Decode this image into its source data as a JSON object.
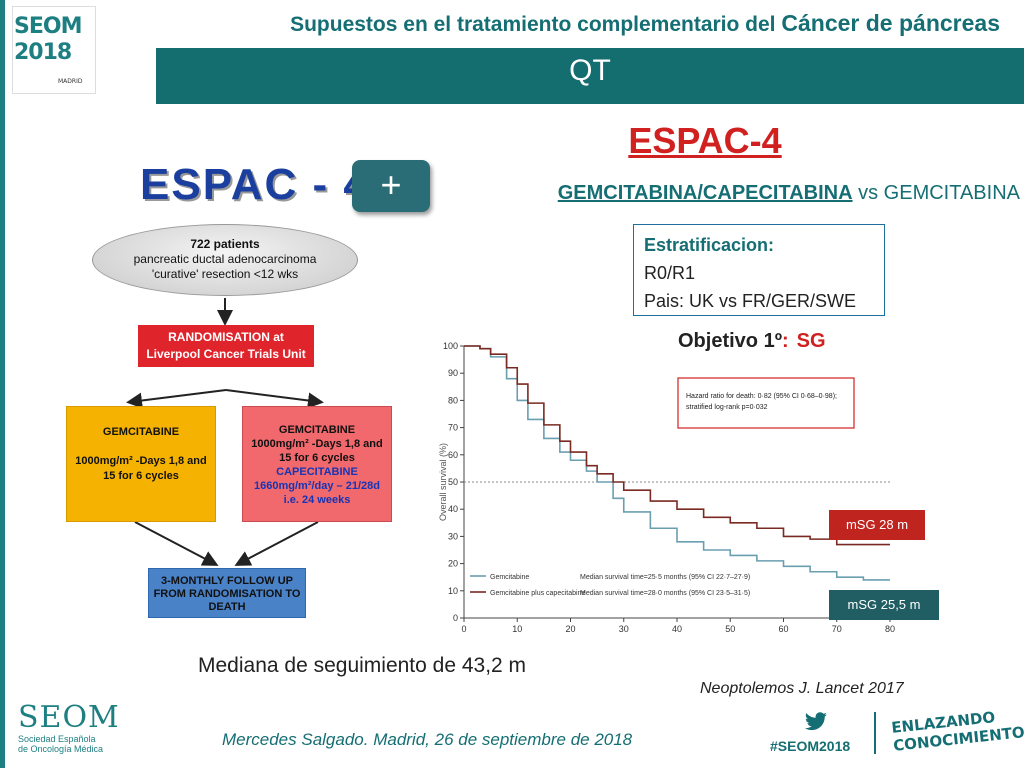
{
  "header": {
    "title_part1": "Supuestos en el tratamiento complementario del",
    "title_part2": "Cáncer de páncreas",
    "section": "QT"
  },
  "logo": {
    "seom": "SEOM",
    "year": "2018",
    "city": "MADRID"
  },
  "trial": {
    "title": "ESPAC-4",
    "drugs_main": "GEMCITABINA/CAPECITABINA",
    "drugs_vs": "vs GEMCITABINA",
    "strat_header": "Estratificacion:",
    "strat_line1": "R0/R1",
    "strat_line2": "Pais: UK vs FR/GER/SWE",
    "objective_label": "Objetivo 1º",
    "objective_colon": ":",
    "objective_value": "SG"
  },
  "flow": {
    "logo": "ESPAC - 4",
    "plus": "+",
    "oval_l1": "722 patients",
    "oval_l2": "pancreatic ductal adenocarcinoma",
    "oval_l3": "'curative' resection <12 wks",
    "random_l1": "RANDOMISATION at",
    "random_l2": "Liverpool Cancer Trials Unit",
    "gem_l1": "GEMCITABINE",
    "gem_l2": "1000mg/m² -Days 1,8 and",
    "gem_l3": "15 for 6 cycles",
    "combo_l1": "GEMCITABINE",
    "combo_l2": "1000mg/m² -Days 1,8 and",
    "combo_l3": "15 for 6 cycles",
    "combo_l4": "CAPECITABINE",
    "combo_l5": "1660mg/m²/day – 21/28d",
    "combo_l6": "i.e. 24 weeks",
    "follow_l1": "3-MONTHLY FOLLOW UP",
    "follow_l2": "FROM RANDOMISATION TO",
    "follow_l3": "DEATH"
  },
  "chart_data": {
    "type": "line",
    "ylabel": "Overall survival (%)",
    "xlim": [
      0,
      80
    ],
    "ylim": [
      0,
      100
    ],
    "x_ticks": [
      0,
      10,
      20,
      30,
      40,
      50,
      60,
      70,
      80
    ],
    "y_ticks": [
      0,
      10,
      20,
      30,
      40,
      50,
      60,
      70,
      80,
      90,
      100
    ],
    "reference_line_y": 50,
    "hr_text_l1": "Hazard ratio for death: 0·82 (95% CI 0·68–0·98);",
    "hr_text_l2": "stratified log-rank p=0·032",
    "series": [
      {
        "name": "Gemcitabine",
        "legend_detail": "Median survival time=25·5 months (95% CI 22·7–27·9)",
        "color": "#6a9fb0",
        "x": [
          0,
          3,
          5,
          8,
          10,
          12,
          15,
          18,
          20,
          23,
          25,
          28,
          30,
          35,
          40,
          45,
          50,
          55,
          60,
          65,
          70,
          75,
          80
        ],
        "y": [
          100,
          99,
          96,
          88,
          80,
          73,
          66,
          61,
          58,
          54,
          50,
          44,
          39,
          33,
          28,
          25,
          23,
          21,
          19,
          17,
          15,
          14,
          14
        ]
      },
      {
        "name": "Gemcitabine plus capecitabine",
        "legend_detail": "Median survival time=28·0 months (95% CI 23·5–31·5)",
        "color": "#7a2a22",
        "x": [
          0,
          3,
          5,
          8,
          10,
          12,
          15,
          18,
          20,
          23,
          25,
          28,
          30,
          35,
          40,
          45,
          50,
          55,
          60,
          65,
          70,
          75,
          80
        ],
        "y": [
          100,
          99,
          97,
          92,
          86,
          79,
          71,
          65,
          61,
          56,
          53,
          50,
          47,
          43,
          40,
          37,
          35,
          33,
          30,
          29,
          27,
          27,
          27
        ]
      }
    ]
  },
  "boxes": {
    "msg_red": "mSG 28 m",
    "msg_teal": "mSG 25,5 m"
  },
  "notes": {
    "mediana": "Mediana de seguimiento de 43,2 m",
    "citation": "Neoptolemos J. Lancet 2017"
  },
  "footer": {
    "author": "Mercedes Salgado. Madrid, 26 de septiembre de 2018",
    "hashtag": "#SEOM2018",
    "enlazando_l1": "ENLAZANDO",
    "enlazando_l2": "CONOCIMIENTO",
    "seom": "SEOM",
    "seom_sub_l1": "Sociedad Española",
    "seom_sub_l2": "de Oncología Médica"
  },
  "colors": {
    "teal": "#146e70",
    "red": "#d02020"
  }
}
